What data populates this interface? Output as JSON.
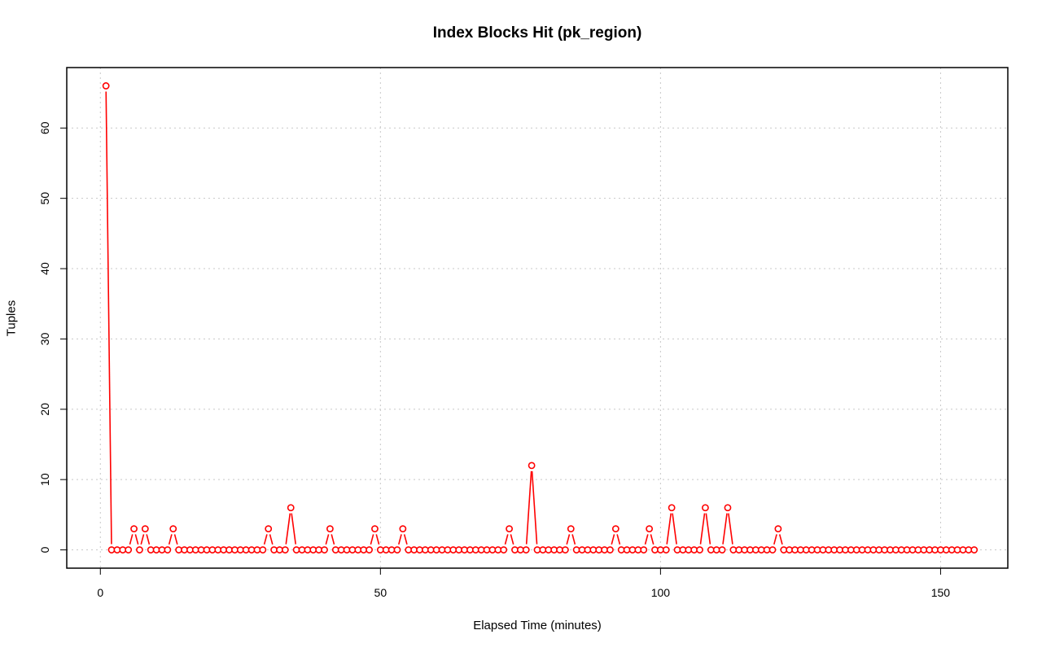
{
  "chart_data": {
    "type": "line",
    "title": "Index Blocks Hit (pk_region)",
    "xlabel": "Elapsed Time (minutes)",
    "ylabel": "Tuples",
    "xlim": [
      -6,
      162
    ],
    "ylim": [
      -2.6,
      68.6
    ],
    "x_ticks": [
      0,
      50,
      100,
      150
    ],
    "y_ticks": [
      0,
      10,
      20,
      30,
      40,
      50,
      60
    ],
    "grid": true,
    "line_color": "#ff0000",
    "marker": "open-circle",
    "x": [
      1,
      2,
      3,
      4,
      5,
      6,
      7,
      8,
      9,
      10,
      11,
      12,
      13,
      14,
      15,
      16,
      17,
      18,
      19,
      20,
      21,
      22,
      23,
      24,
      25,
      26,
      27,
      28,
      29,
      30,
      31,
      32,
      33,
      34,
      35,
      36,
      37,
      38,
      39,
      40,
      41,
      42,
      43,
      44,
      45,
      46,
      47,
      48,
      49,
      50,
      51,
      52,
      53,
      54,
      55,
      56,
      57,
      58,
      59,
      60,
      61,
      62,
      63,
      64,
      65,
      66,
      67,
      68,
      69,
      70,
      71,
      72,
      73,
      74,
      75,
      76,
      77,
      78,
      79,
      80,
      81,
      82,
      83,
      84,
      85,
      86,
      87,
      88,
      89,
      90,
      91,
      92,
      93,
      94,
      95,
      96,
      97,
      98,
      99,
      100,
      101,
      102,
      103,
      104,
      105,
      106,
      107,
      108,
      109,
      110,
      111,
      112,
      113,
      114,
      115,
      116,
      117,
      118,
      119,
      120,
      121,
      122,
      123,
      124,
      125,
      126,
      127,
      128,
      129,
      130,
      131,
      132,
      133,
      134,
      135,
      136,
      137,
      138,
      139,
      140,
      141,
      142,
      143,
      144,
      145,
      146,
      147,
      148,
      149,
      150,
      151,
      152,
      153,
      154,
      155,
      156
    ],
    "y": [
      66,
      0,
      0,
      0,
      0,
      3,
      0,
      3,
      0,
      0,
      0,
      0,
      3,
      0,
      0,
      0,
      0,
      0,
      0,
      0,
      0,
      0,
      0,
      0,
      0,
      0,
      0,
      0,
      0,
      3,
      0,
      0,
      0,
      6,
      0,
      0,
      0,
      0,
      0,
      0,
      3,
      0,
      0,
      0,
      0,
      0,
      0,
      0,
      3,
      0,
      0,
      0,
      0,
      3,
      0,
      0,
      0,
      0,
      0,
      0,
      0,
      0,
      0,
      0,
      0,
      0,
      0,
      0,
      0,
      0,
      0,
      0,
      3,
      0,
      0,
      0,
      12,
      0,
      0,
      0,
      0,
      0,
      0,
      3,
      0,
      0,
      0,
      0,
      0,
      0,
      0,
      3,
      0,
      0,
      0,
      0,
      0,
      3,
      0,
      0,
      0,
      6,
      0,
      0,
      0,
      0,
      0,
      6,
      0,
      0,
      0,
      6,
      0,
      0,
      0,
      0,
      0,
      0,
      0,
      0,
      3,
      0,
      0,
      0,
      0,
      0,
      0,
      0,
      0,
      0,
      0,
      0,
      0,
      0,
      0,
      0,
      0,
      0,
      0,
      0,
      0,
      0,
      0,
      0,
      0,
      0,
      0,
      0,
      0,
      0,
      0,
      0,
      0,
      0,
      0,
      0
    ]
  }
}
